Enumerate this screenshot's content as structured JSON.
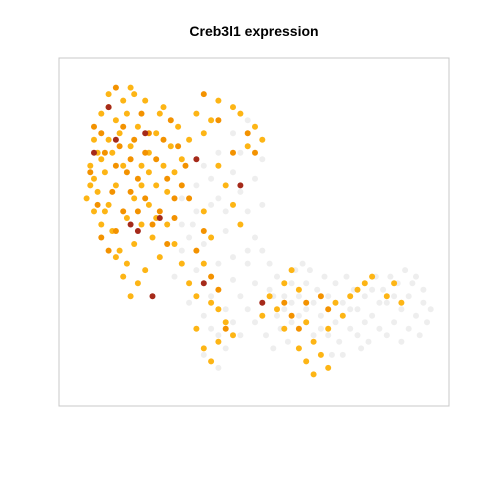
{
  "chart_data": {
    "type": "scatter",
    "title": "Creb3l1 expression",
    "xlabel": "",
    "ylabel": "",
    "xlim": [
      0,
      1
    ],
    "ylim": [
      0,
      1
    ],
    "grid": false,
    "axes": false,
    "legend": "none",
    "colors": {
      "zero": "#eeeeee",
      "low": "#fdb515",
      "mid": "#f39200",
      "high": "#a52a1a",
      "frame": "#c8c8c8"
    },
    "series": [
      {
        "values_desc": "background",
        "points": [
          [
            0.33,
            0.52
          ],
          [
            0.36,
            0.46
          ],
          [
            0.38,
            0.58
          ],
          [
            0.4,
            0.4
          ],
          [
            0.42,
            0.5
          ],
          [
            0.44,
            0.35
          ],
          [
            0.46,
            0.62
          ],
          [
            0.48,
            0.44
          ],
          [
            0.36,
            0.7
          ],
          [
            0.4,
            0.74
          ],
          [
            0.44,
            0.68
          ],
          [
            0.48,
            0.56
          ],
          [
            0.5,
            0.48
          ],
          [
            0.38,
            0.3
          ],
          [
            0.34,
            0.38
          ],
          [
            0.3,
            0.44
          ],
          [
            0.28,
            0.36
          ],
          [
            0.32,
            0.28
          ],
          [
            0.42,
            0.26
          ],
          [
            0.46,
            0.3
          ],
          [
            0.5,
            0.34
          ],
          [
            0.52,
            0.28
          ],
          [
            0.5,
            0.22
          ],
          [
            0.46,
            0.18
          ],
          [
            0.42,
            0.14
          ],
          [
            0.38,
            0.2
          ],
          [
            0.36,
            0.12
          ],
          [
            0.4,
            0.08
          ],
          [
            0.55,
            0.3
          ],
          [
            0.58,
            0.26
          ],
          [
            0.6,
            0.22
          ],
          [
            0.62,
            0.3
          ],
          [
            0.64,
            0.26
          ],
          [
            0.6,
            0.34
          ],
          [
            0.66,
            0.18
          ],
          [
            0.68,
            0.24
          ],
          [
            0.7,
            0.3
          ],
          [
            0.72,
            0.22
          ],
          [
            0.74,
            0.28
          ],
          [
            0.76,
            0.2
          ],
          [
            0.78,
            0.26
          ],
          [
            0.8,
            0.3
          ],
          [
            0.82,
            0.24
          ],
          [
            0.84,
            0.2
          ],
          [
            0.86,
            0.28
          ],
          [
            0.88,
            0.22
          ],
          [
            0.9,
            0.26
          ],
          [
            0.92,
            0.3
          ],
          [
            0.94,
            0.24
          ],
          [
            0.96,
            0.28
          ],
          [
            0.97,
            0.22
          ],
          [
            0.95,
            0.18
          ],
          [
            0.93,
            0.34
          ],
          [
            0.91,
            0.38
          ],
          [
            0.89,
            0.34
          ],
          [
            0.87,
            0.36
          ],
          [
            0.85,
            0.32
          ],
          [
            0.83,
            0.36
          ],
          [
            0.81,
            0.16
          ],
          [
            0.79,
            0.14
          ],
          [
            0.77,
            0.32
          ],
          [
            0.75,
            0.36
          ],
          [
            0.73,
            0.16
          ],
          [
            0.71,
            0.12
          ],
          [
            0.69,
            0.36
          ],
          [
            0.67,
            0.32
          ],
          [
            0.65,
            0.38
          ],
          [
            0.63,
            0.4
          ],
          [
            0.61,
            0.38
          ],
          [
            0.59,
            0.16
          ],
          [
            0.57,
            0.2
          ],
          [
            0.55,
            0.14
          ],
          [
            0.53,
            0.18
          ],
          [
            0.98,
            0.26
          ],
          [
            0.96,
            0.32
          ],
          [
            0.94,
            0.36
          ],
          [
            0.92,
            0.2
          ],
          [
            0.9,
            0.16
          ],
          [
            0.88,
            0.3
          ],
          [
            0.86,
            0.18
          ],
          [
            0.84,
            0.28
          ],
          [
            0.82,
            0.32
          ],
          [
            0.8,
            0.22
          ],
          [
            0.78,
            0.18
          ],
          [
            0.76,
            0.26
          ],
          [
            0.74,
            0.12
          ],
          [
            0.72,
            0.34
          ],
          [
            0.7,
            0.18
          ],
          [
            0.56,
            0.36
          ],
          [
            0.54,
            0.4
          ],
          [
            0.52,
            0.44
          ],
          [
            0.48,
            0.4
          ],
          [
            0.44,
            0.42
          ],
          [
            0.4,
            0.6
          ],
          [
            0.46,
            0.74
          ],
          [
            0.5,
            0.66
          ],
          [
            0.52,
            0.58
          ],
          [
            0.48,
            0.84
          ],
          [
            0.44,
            0.8
          ],
          [
            0.52,
            0.72
          ],
          [
            0.3,
            0.6
          ],
          [
            0.34,
            0.64
          ],
          [
            0.38,
            0.66
          ],
          [
            0.42,
            0.56
          ],
          [
            0.58,
            0.3
          ],
          [
            0.62,
            0.24
          ],
          [
            0.66,
            0.28
          ],
          [
            0.68,
            0.2
          ],
          [
            0.64,
            0.34
          ],
          [
            0.6,
            0.28
          ],
          [
            0.56,
            0.24
          ],
          [
            0.54,
            0.32
          ],
          [
            0.36,
            0.24
          ],
          [
            0.4,
            0.18
          ],
          [
            0.44,
            0.22
          ],
          [
            0.48,
            0.26
          ],
          [
            0.36,
            0.34
          ],
          [
            0.32,
            0.48
          ],
          [
            0.34,
            0.56
          ],
          [
            0.3,
            0.52
          ]
        ]
      },
      {
        "values_desc": "low",
        "points": [
          [
            0.04,
            0.6
          ],
          [
            0.06,
            0.66
          ],
          [
            0.08,
            0.72
          ],
          [
            0.1,
            0.78
          ],
          [
            0.12,
            0.84
          ],
          [
            0.14,
            0.9
          ],
          [
            0.16,
            0.94
          ],
          [
            0.1,
            0.92
          ],
          [
            0.08,
            0.86
          ],
          [
            0.06,
            0.78
          ],
          [
            0.05,
            0.7
          ],
          [
            0.07,
            0.62
          ],
          [
            0.09,
            0.56
          ],
          [
            0.11,
            0.5
          ],
          [
            0.13,
            0.44
          ],
          [
            0.15,
            0.4
          ],
          [
            0.17,
            0.46
          ],
          [
            0.19,
            0.52
          ],
          [
            0.21,
            0.58
          ],
          [
            0.23,
            0.64
          ],
          [
            0.25,
            0.7
          ],
          [
            0.27,
            0.76
          ],
          [
            0.29,
            0.82
          ],
          [
            0.24,
            0.86
          ],
          [
            0.2,
            0.9
          ],
          [
            0.18,
            0.82
          ],
          [
            0.16,
            0.76
          ],
          [
            0.14,
            0.7
          ],
          [
            0.12,
            0.64
          ],
          [
            0.1,
            0.58
          ],
          [
            0.08,
            0.52
          ],
          [
            0.06,
            0.56
          ],
          [
            0.22,
            0.48
          ],
          [
            0.24,
            0.42
          ],
          [
            0.26,
            0.52
          ],
          [
            0.28,
            0.46
          ],
          [
            0.3,
            0.4
          ],
          [
            0.32,
            0.34
          ],
          [
            0.34,
            0.3
          ],
          [
            0.36,
            0.4
          ],
          [
            0.2,
            0.38
          ],
          [
            0.18,
            0.34
          ],
          [
            0.16,
            0.3
          ],
          [
            0.14,
            0.36
          ],
          [
            0.12,
            0.42
          ],
          [
            0.26,
            0.62
          ],
          [
            0.28,
            0.68
          ],
          [
            0.3,
            0.72
          ],
          [
            0.32,
            0.78
          ],
          [
            0.34,
            0.86
          ],
          [
            0.36,
            0.8
          ],
          [
            0.38,
            0.84
          ],
          [
            0.4,
            0.9
          ],
          [
            0.44,
            0.88
          ],
          [
            0.46,
            0.86
          ],
          [
            0.48,
            0.76
          ],
          [
            0.5,
            0.82
          ],
          [
            0.52,
            0.78
          ],
          [
            0.4,
            0.7
          ],
          [
            0.42,
            0.64
          ],
          [
            0.44,
            0.58
          ],
          [
            0.46,
            0.52
          ],
          [
            0.38,
            0.48
          ],
          [
            0.36,
            0.56
          ],
          [
            0.34,
            0.2
          ],
          [
            0.36,
            0.14
          ],
          [
            0.38,
            0.1
          ],
          [
            0.4,
            0.16
          ],
          [
            0.42,
            0.22
          ],
          [
            0.44,
            0.18
          ],
          [
            0.4,
            0.26
          ],
          [
            0.38,
            0.28
          ],
          [
            0.54,
            0.3
          ],
          [
            0.56,
            0.26
          ],
          [
            0.58,
            0.34
          ],
          [
            0.6,
            0.38
          ],
          [
            0.62,
            0.32
          ],
          [
            0.64,
            0.22
          ],
          [
            0.66,
            0.16
          ],
          [
            0.68,
            0.12
          ],
          [
            0.7,
            0.2
          ],
          [
            0.72,
            0.28
          ],
          [
            0.74,
            0.24
          ],
          [
            0.76,
            0.3
          ],
          [
            0.78,
            0.32
          ],
          [
            0.8,
            0.34
          ],
          [
            0.82,
            0.36
          ],
          [
            0.86,
            0.3
          ],
          [
            0.9,
            0.28
          ],
          [
            0.88,
            0.34
          ],
          [
            0.64,
            0.1
          ],
          [
            0.66,
            0.06
          ],
          [
            0.62,
            0.14
          ],
          [
            0.7,
            0.08
          ],
          [
            0.58,
            0.2
          ],
          [
            0.52,
            0.24
          ],
          [
            0.11,
            0.74
          ],
          [
            0.13,
            0.8
          ],
          [
            0.15,
            0.86
          ],
          [
            0.17,
            0.92
          ],
          [
            0.19,
            0.7
          ],
          [
            0.21,
            0.74
          ],
          [
            0.23,
            0.8
          ],
          [
            0.25,
            0.88
          ],
          [
            0.09,
            0.68
          ],
          [
            0.07,
            0.74
          ],
          [
            0.05,
            0.64
          ],
          [
            0.15,
            0.54
          ],
          [
            0.17,
            0.6
          ],
          [
            0.19,
            0.64
          ],
          [
            0.21,
            0.68
          ],
          [
            0.23,
            0.54
          ]
        ]
      },
      {
        "values_desc": "mid",
        "points": [
          [
            0.05,
            0.68
          ],
          [
            0.07,
            0.58
          ],
          [
            0.09,
            0.74
          ],
          [
            0.11,
            0.62
          ],
          [
            0.13,
            0.76
          ],
          [
            0.15,
            0.68
          ],
          [
            0.17,
            0.78
          ],
          [
            0.19,
            0.86
          ],
          [
            0.21,
            0.8
          ],
          [
            0.23,
            0.72
          ],
          [
            0.25,
            0.78
          ],
          [
            0.27,
            0.84
          ],
          [
            0.29,
            0.76
          ],
          [
            0.31,
            0.7
          ],
          [
            0.1,
            0.88
          ],
          [
            0.12,
            0.94
          ],
          [
            0.14,
            0.82
          ],
          [
            0.16,
            0.72
          ],
          [
            0.18,
            0.66
          ],
          [
            0.2,
            0.6
          ],
          [
            0.22,
            0.52
          ],
          [
            0.24,
            0.56
          ],
          [
            0.26,
            0.46
          ],
          [
            0.28,
            0.54
          ],
          [
            0.3,
            0.64
          ],
          [
            0.32,
            0.6
          ],
          [
            0.08,
            0.48
          ],
          [
            0.1,
            0.44
          ],
          [
            0.12,
            0.5
          ],
          [
            0.14,
            0.56
          ],
          [
            0.16,
            0.62
          ],
          [
            0.18,
            0.56
          ],
          [
            0.34,
            0.44
          ],
          [
            0.36,
            0.5
          ],
          [
            0.38,
            0.36
          ],
          [
            0.4,
            0.32
          ],
          [
            0.42,
            0.2
          ],
          [
            0.6,
            0.24
          ],
          [
            0.62,
            0.2
          ],
          [
            0.64,
            0.28
          ],
          [
            0.68,
            0.3
          ],
          [
            0.7,
            0.26
          ],
          [
            0.58,
            0.28
          ],
          [
            0.48,
            0.8
          ],
          [
            0.5,
            0.74
          ],
          [
            0.44,
            0.74
          ],
          [
            0.36,
            0.92
          ],
          [
            0.4,
            0.84
          ],
          [
            0.06,
            0.82
          ],
          [
            0.08,
            0.8
          ],
          [
            0.12,
            0.7
          ],
          [
            0.2,
            0.74
          ],
          [
            0.26,
            0.66
          ],
          [
            0.28,
            0.6
          ]
        ]
      },
      {
        "values_desc": "high",
        "points": [
          [
            0.06,
            0.74
          ],
          [
            0.1,
            0.88
          ],
          [
            0.18,
            0.5
          ],
          [
            0.24,
            0.54
          ],
          [
            0.16,
            0.52
          ],
          [
            0.46,
            0.64
          ],
          [
            0.34,
            0.72
          ],
          [
            0.36,
            0.34
          ],
          [
            0.52,
            0.28
          ],
          [
            0.22,
            0.3
          ],
          [
            0.12,
            0.78
          ],
          [
            0.2,
            0.8
          ]
        ]
      }
    ]
  }
}
